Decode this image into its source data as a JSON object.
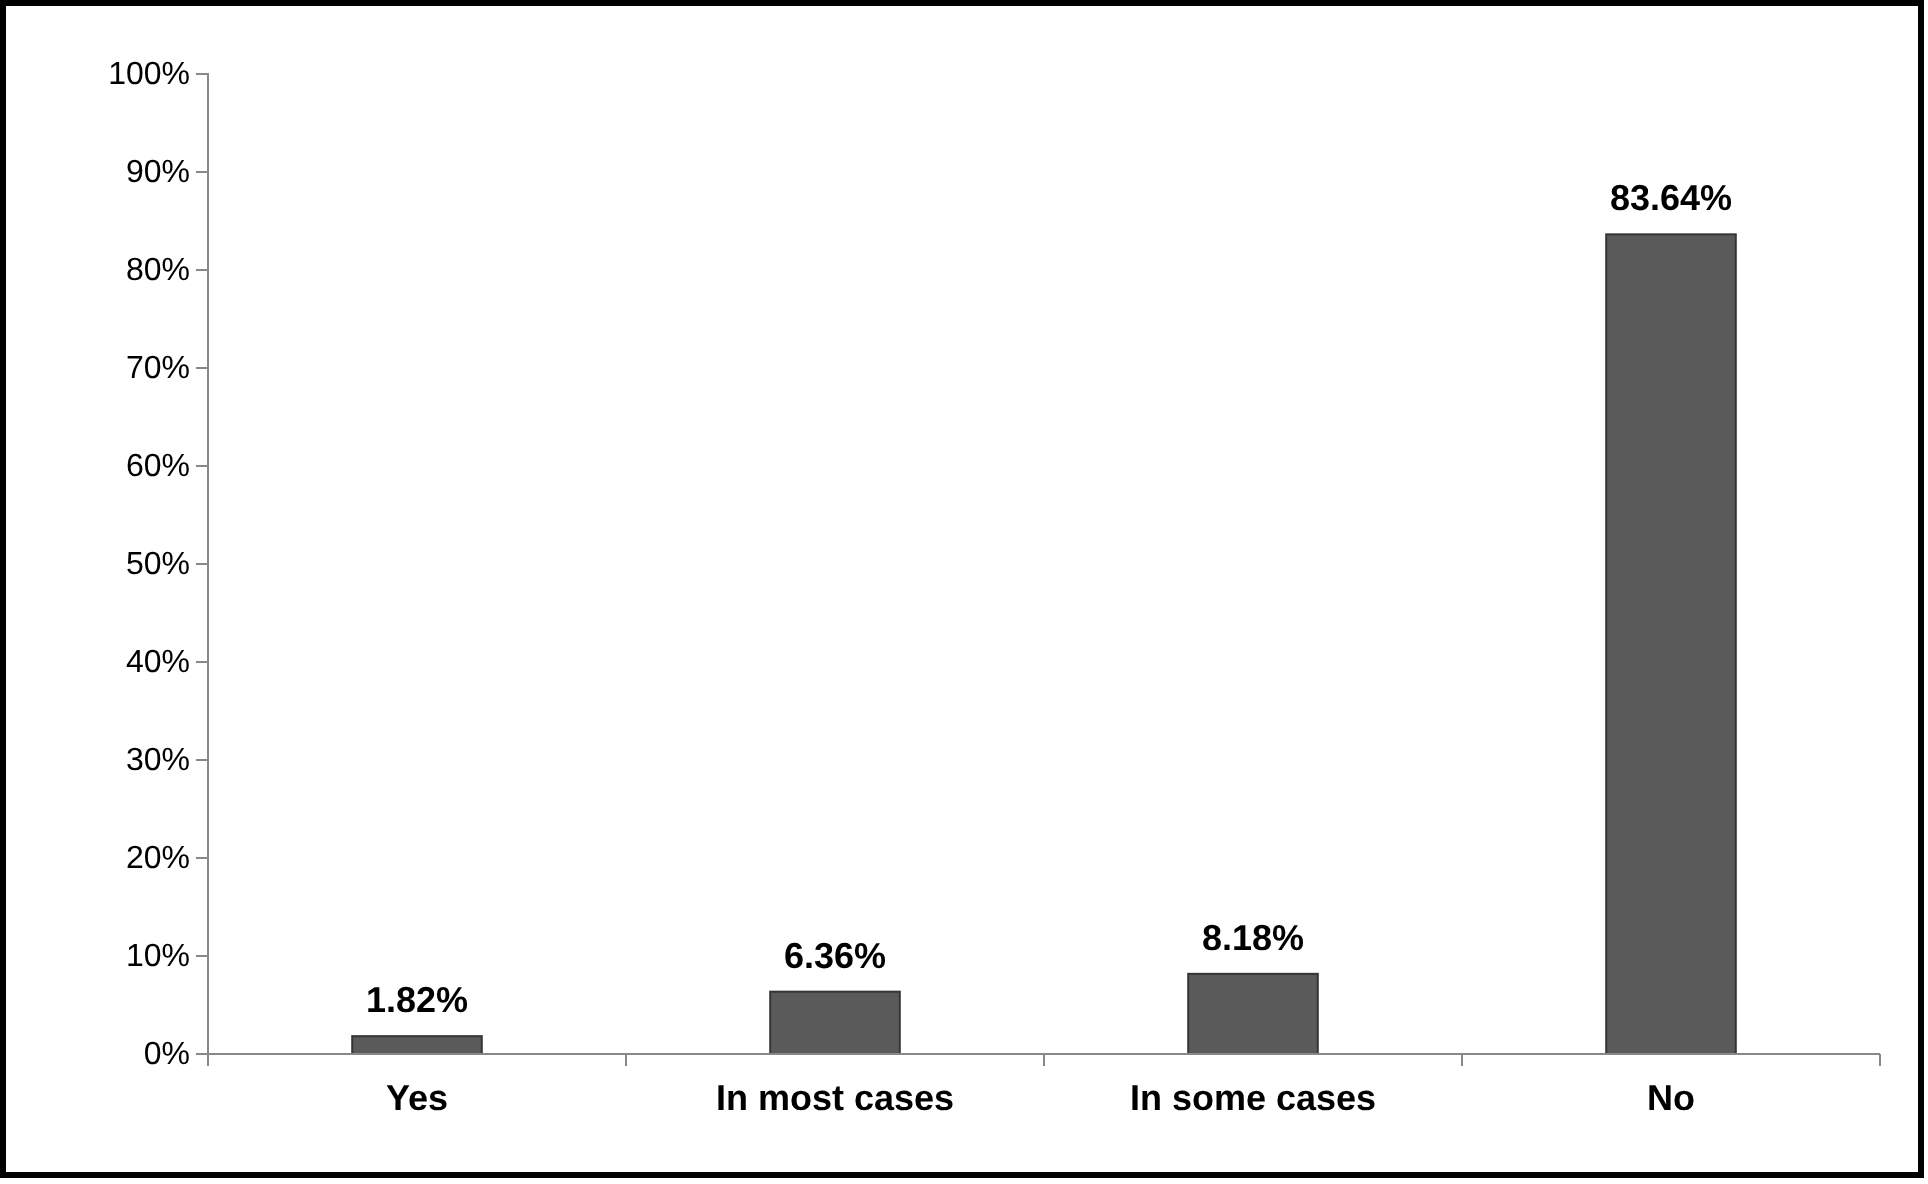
{
  "chart_data": {
    "type": "bar",
    "categories": [
      "Yes",
      "In most cases",
      "In some cases",
      "No"
    ],
    "values": [
      1.82,
      6.36,
      8.18,
      83.64
    ],
    "color": "#5a5a5a",
    "value_labels": [
      "1.82%",
      "6.36%",
      "8.18%",
      "83.64%"
    ],
    "ylim": [
      0,
      100
    ],
    "yticks": [
      {
        "value": 0,
        "label": "0%"
      },
      {
        "value": 10,
        "label": "10%"
      },
      {
        "value": 20,
        "label": "20%"
      },
      {
        "value": 30,
        "label": "30%"
      },
      {
        "value": 40,
        "label": "40%"
      },
      {
        "value": 50,
        "label": "50%"
      },
      {
        "value": 60,
        "label": "60%"
      },
      {
        "value": 70,
        "label": "70%"
      },
      {
        "value": 80,
        "label": "80%"
      },
      {
        "value": 90,
        "label": "90%"
      },
      {
        "value": 100,
        "label": "100%"
      }
    ],
    "grid": false
  }
}
